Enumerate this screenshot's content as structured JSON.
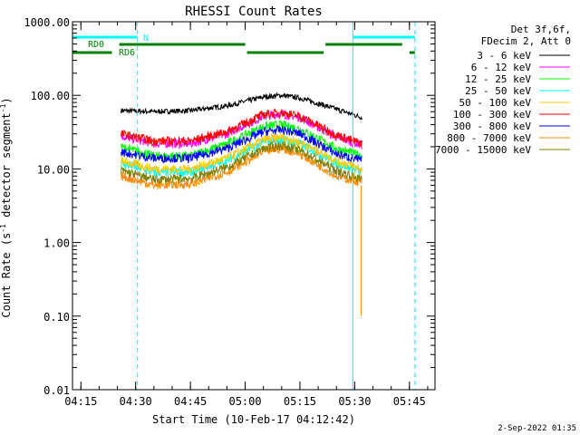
{
  "chart_data": {
    "type": "line",
    "title": "RHESSI Count Rates",
    "xlabel": "Start Time (10-Feb-17 04:12:42)",
    "ylabel_prefix": "Count Rate (s",
    "ylabel_sup": "-1",
    "ylabel_middle": " detector segment",
    "ylabel_suffix": ")",
    "y_scale": "log",
    "ylim": [
      0.01,
      1000
    ],
    "xlim": [
      "04:12:42",
      "05:52:00"
    ],
    "x_ticks": [
      "04:15",
      "04:30",
      "04:45",
      "05:00",
      "05:15",
      "05:30",
      "05:45"
    ],
    "y_ticks": [
      {
        "value": 1000,
        "label": "1000.00"
      },
      {
        "value": 100,
        "label": "100.00"
      },
      {
        "value": 10,
        "label": "10.00"
      },
      {
        "value": 1,
        "label": "1.00"
      },
      {
        "value": 0.1,
        "label": "0.10"
      },
      {
        "value": 0.01,
        "label": "0.01"
      }
    ],
    "legend_header": [
      "Det 3f,6f,",
      "FDecim 2, Att 0"
    ],
    "legend_placement": "right",
    "footer_date": "2-Sep-2022 01:35",
    "series": [
      {
        "name": "3 - 6 keV",
        "color": "#000000",
        "data": [
          [
            "04:26",
            62
          ],
          [
            "04:35",
            60
          ],
          [
            "04:45",
            62
          ],
          [
            "04:55",
            72
          ],
          [
            "05:05",
            95
          ],
          [
            "05:10",
            100
          ],
          [
            "05:15",
            92
          ],
          [
            "05:25",
            65
          ],
          [
            "05:32",
            50
          ]
        ]
      },
      {
        "name": "6 - 12 keV",
        "color": "#ff00ff",
        "data": [
          [
            "04:26",
            28
          ],
          [
            "04:35",
            22
          ],
          [
            "04:45",
            22
          ],
          [
            "04:55",
            30
          ],
          [
            "05:05",
            52
          ],
          [
            "05:10",
            56
          ],
          [
            "05:15",
            50
          ],
          [
            "05:25",
            27
          ],
          [
            "05:32",
            21
          ]
        ]
      },
      {
        "name": "12 - 25 keV",
        "color": "#00ff00",
        "data": [
          [
            "04:26",
            20
          ],
          [
            "04:35",
            15
          ],
          [
            "04:45",
            15
          ],
          [
            "04:55",
            22
          ],
          [
            "05:05",
            38
          ],
          [
            "05:10",
            40
          ],
          [
            "05:15",
            35
          ],
          [
            "05:25",
            19
          ],
          [
            "05:32",
            15
          ]
        ]
      },
      {
        "name": "25 - 50 keV",
        "color": "#00ffff",
        "data": [
          [
            "04:26",
            12
          ],
          [
            "04:35",
            9
          ],
          [
            "04:45",
            9
          ],
          [
            "04:55",
            13
          ],
          [
            "05:05",
            23
          ],
          [
            "05:10",
            25
          ],
          [
            "05:15",
            22
          ],
          [
            "05:25",
            12
          ],
          [
            "05:32",
            9
          ]
        ]
      },
      {
        "name": "50 - 100 keV",
        "color": "#ffcc00",
        "data": [
          [
            "04:26",
            13
          ],
          [
            "04:35",
            10
          ],
          [
            "04:45",
            10
          ],
          [
            "04:55",
            14
          ],
          [
            "05:05",
            25
          ],
          [
            "05:10",
            27
          ],
          [
            "05:15",
            23
          ],
          [
            "05:25",
            13
          ],
          [
            "05:32",
            10
          ]
        ]
      },
      {
        "name": "100 - 300 keV",
        "color": "#ff0000",
        "data": [
          [
            "04:26",
            30
          ],
          [
            "04:35",
            24
          ],
          [
            "04:45",
            24
          ],
          [
            "04:55",
            32
          ],
          [
            "05:05",
            55
          ],
          [
            "05:10",
            58
          ],
          [
            "05:15",
            52
          ],
          [
            "05:25",
            29
          ],
          [
            "05:32",
            22
          ]
        ]
      },
      {
        "name": "300 - 800 keV",
        "color": "#0000ff",
        "data": [
          [
            "04:26",
            17
          ],
          [
            "04:35",
            14
          ],
          [
            "04:45",
            14
          ],
          [
            "04:55",
            19
          ],
          [
            "05:05",
            32
          ],
          [
            "05:10",
            34
          ],
          [
            "05:15",
            30
          ],
          [
            "05:25",
            16
          ],
          [
            "05:32",
            13
          ]
        ]
      },
      {
        "name": "800 - 7000 keV",
        "color": "#ff8c00",
        "data": [
          [
            "04:26",
            8
          ],
          [
            "04:35",
            6
          ],
          [
            "04:45",
            6.2
          ],
          [
            "04:55",
            9
          ],
          [
            "05:05",
            17
          ],
          [
            "05:10",
            19
          ],
          [
            "05:15",
            16
          ],
          [
            "05:25",
            8
          ],
          [
            "05:32",
            6.5
          ]
        ]
      },
      {
        "name": "7000 - 15000 keV",
        "color": "#808000",
        "data": [
          [
            "04:26",
            9.5
          ],
          [
            "04:35",
            7.2
          ],
          [
            "04:45",
            7.4
          ],
          [
            "04:55",
            10.5
          ],
          [
            "05:05",
            19
          ],
          [
            "05:10",
            21
          ],
          [
            "05:15",
            18
          ],
          [
            "05:25",
            9.5
          ],
          [
            "05:32",
            7.2
          ]
        ]
      }
    ],
    "vertical_markers": [
      {
        "time": "04:12:42",
        "style": "solid",
        "color": "#00ffff"
      },
      {
        "time": "04:30:30",
        "style": "dashed",
        "color": "#00ffff"
      },
      {
        "time": "05:29:30",
        "style": "solid",
        "color": "#00ffff"
      },
      {
        "time": "05:46:30",
        "style": "dashed",
        "color": "#00ffff"
      }
    ],
    "flag_bars": [
      {
        "label": "N",
        "color": "#00ffff",
        "level": "top",
        "segments": [
          [
            "04:12:42",
            "04:30:30"
          ],
          [
            "05:29:30",
            "05:46:30"
          ]
        ]
      },
      {
        "label": "RD0",
        "color": "#008000",
        "level": "middle",
        "segments": [
          [
            "04:25:30",
            "05:00:00"
          ],
          [
            "05:22:00",
            "05:43:00"
          ]
        ]
      },
      {
        "label": "RD6",
        "color": "#008000",
        "level": "bottom",
        "segments": [
          [
            "04:12:42",
            "04:23:30"
          ],
          [
            "05:00:30",
            "05:21:30"
          ],
          [
            "05:45:00",
            "05:46:30"
          ]
        ]
      }
    ]
  }
}
